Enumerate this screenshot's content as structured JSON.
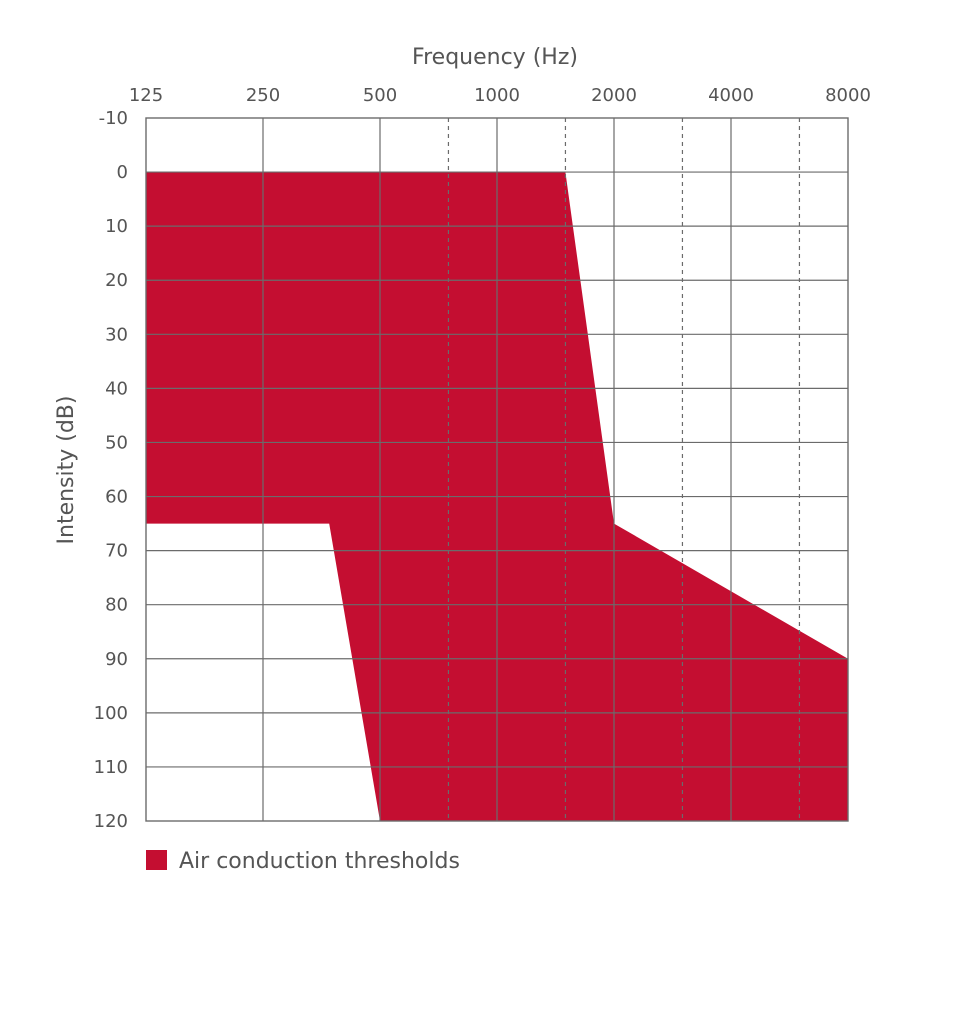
{
  "chart_data": {
    "type": "area",
    "xlabel": "Frequency (Hz)",
    "ylabel": "Intensity (dB)",
    "x_scale": "log2",
    "x_ticks": [
      "125",
      "250",
      "500",
      "1000",
      "2000",
      "4000",
      "8000"
    ],
    "x_tick_values": [
      125,
      250,
      500,
      1000,
      2000,
      4000,
      8000
    ],
    "x_interoctave_dashed": [
      750,
      1500,
      3000,
      6000
    ],
    "y_ticks": [
      "-10",
      "0",
      "10",
      "20",
      "30",
      "40",
      "50",
      "60",
      "70",
      "80",
      "90",
      "100",
      "110",
      "120"
    ],
    "y_tick_values": [
      -10,
      0,
      10,
      20,
      30,
      40,
      50,
      60,
      70,
      80,
      90,
      100,
      110,
      120
    ],
    "ylim": [
      -10,
      120
    ],
    "y_inverted": true,
    "grid": true,
    "series": [
      {
        "name": "Air conduction thresholds",
        "color": "#c40e31",
        "polygon": [
          {
            "x": 125,
            "y": 0
          },
          {
            "x": 1500,
            "y": 0
          },
          {
            "x": 2000,
            "y": 65
          },
          {
            "x": 8000,
            "y": 90
          },
          {
            "x": 8000,
            "y": 120
          },
          {
            "x": 500,
            "y": 120
          },
          {
            "x": 370,
            "y": 65
          },
          {
            "x": 125,
            "y": 65
          }
        ]
      }
    ],
    "legend": {
      "position": "bottom-left",
      "label": "Air conduction thresholds",
      "color": "#c40e31"
    }
  }
}
